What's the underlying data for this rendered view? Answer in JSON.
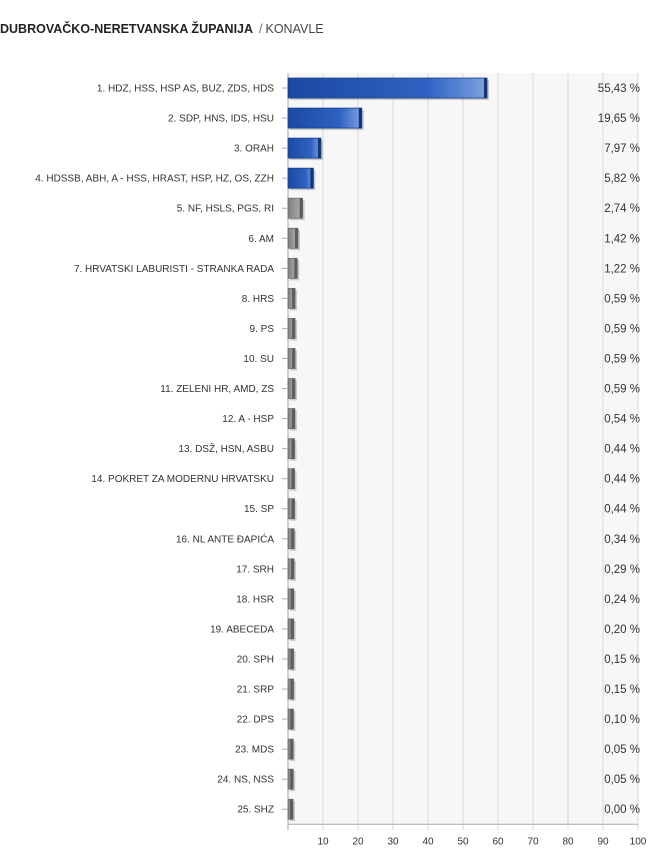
{
  "header": {
    "region": "DUBROVAČKO-NERETVANSKA ŽUPANIJA",
    "separator": "/",
    "place": "KONAVLE"
  },
  "chart_data": {
    "type": "bar",
    "orientation": "horizontal",
    "title": "",
    "xlabel": "",
    "ylabel": "",
    "xlim": [
      0,
      100
    ],
    "x_ticks": [
      10,
      20,
      30,
      40,
      50,
      60,
      70,
      80,
      90,
      100
    ],
    "grid": true,
    "colors": {
      "top4": "#1f4fa8",
      "others": "#8a8a8a",
      "grid": "#d9d9d9",
      "plot_bg": "#f7f7f7"
    },
    "highlight_count": 4,
    "categories": [
      "1. HDZ, HSS, HSP AS, BUZ, ZDS, HDS",
      "2. SDP, HNS, IDS, HSU",
      "3. ORAH",
      "4. HDSSB, ABH, A - HSS, HRAST, HSP, HZ, OS, ZZH",
      "5. NF, HSLS, PGS, RI",
      "6. AM",
      "7. HRVATSKI LABURISTI - STRANKA RADA",
      "8. HRS",
      "9. PS",
      "10. SU",
      "11. ZELENI HR, AMD, ZS",
      "12. A - HSP",
      "13. DSŽ, HSN, ASBU",
      "14. POKRET ZA MODERNU HRVATSKU",
      "15. SP",
      "16. NL ANTE ĐAPIĆA",
      "17. SRH",
      "18. HSR",
      "19. ABECEDA",
      "20. SPH",
      "21. SRP",
      "22. DPS",
      "23. MDS",
      "24. NS, NSS",
      "25. SHZ"
    ],
    "values": [
      55.43,
      19.65,
      7.97,
      5.82,
      2.74,
      1.42,
      1.22,
      0.59,
      0.59,
      0.59,
      0.59,
      0.54,
      0.44,
      0.44,
      0.44,
      0.34,
      0.29,
      0.24,
      0.2,
      0.15,
      0.15,
      0.1,
      0.05,
      0.05,
      0.0
    ],
    "value_labels": [
      "55,43 %",
      "19,65 %",
      "7,97 %",
      "5,82 %",
      "2,74 %",
      "1,42 %",
      "1,22 %",
      "0,59 %",
      "0,59 %",
      "0,59 %",
      "0,59 %",
      "0,54 %",
      "0,44 %",
      "0,44 %",
      "0,44 %",
      "0,34 %",
      "0,29 %",
      "0,24 %",
      "0,20 %",
      "0,15 %",
      "0,15 %",
      "0,10 %",
      "0,05 %",
      "0,05 %",
      "0,00 %"
    ]
  }
}
